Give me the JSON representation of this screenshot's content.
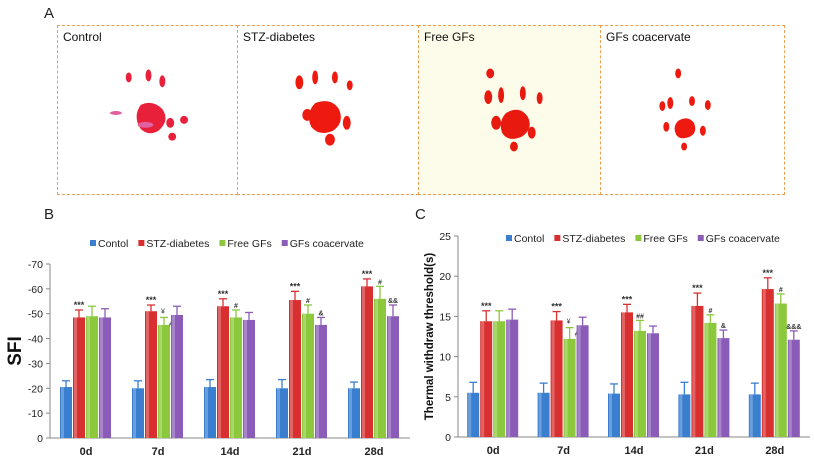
{
  "panel_labels": {
    "a": "A",
    "b": "B",
    "c": "C"
  },
  "paw_panels": [
    {
      "title": "Control",
      "background": "#ffffff"
    },
    {
      "title": "STZ-diabetes",
      "background": "#ffffff"
    },
    {
      "title": "Free GFs",
      "background": "#fdfbe9"
    },
    {
      "title": "GFs coacervate",
      "background": "#ffffff"
    }
  ],
  "chart_data": [
    {
      "type": "bar",
      "title": "",
      "panel": "B",
      "ylabel": "SFI",
      "xlabel": "",
      "ylim": [
        0,
        -70
      ],
      "yticks": [
        0,
        -10,
        -20,
        -30,
        -40,
        -50,
        -60,
        -70
      ],
      "inverted_axis": true,
      "categories": [
        "0d",
        "7d",
        "14d",
        "21d",
        "28d"
      ],
      "legend_position": "top",
      "series": [
        {
          "name": "Contol",
          "color": "#3a7ed0",
          "values": [
            -20.5,
            -20,
            -20.5,
            -20,
            -20
          ],
          "errors": [
            2.5,
            3,
            3,
            3.5,
            2.5
          ],
          "annotations": [
            "",
            "",
            "",
            "",
            ""
          ]
        },
        {
          "name": "STZ-diabetes",
          "color": "#d83030",
          "values": [
            -48.5,
            -51,
            -53,
            -55.5,
            -61
          ],
          "errors": [
            3,
            2.5,
            3,
            3.5,
            3
          ],
          "annotations": [
            "***",
            "***",
            "***",
            "***",
            "***"
          ]
        },
        {
          "name": "Free GFs",
          "color": "#8cc83c",
          "values": [
            -49,
            -45.5,
            -48.5,
            -50,
            -56
          ],
          "errors": [
            4,
            3,
            3,
            3.5,
            5
          ],
          "annotations": [
            "",
            "¥ ##",
            "#",
            "#",
            "#"
          ]
        },
        {
          "name": "GFs coacervate",
          "color": "#8a5cb8",
          "values": [
            -48.5,
            -49.5,
            -47.5,
            -45.5,
            -49
          ],
          "errors": [
            3.5,
            3.5,
            3,
            3,
            4.5
          ],
          "annotations": [
            "",
            "",
            "",
            "&",
            "&&"
          ]
        }
      ]
    },
    {
      "type": "bar",
      "title": "",
      "panel": "C",
      "ylabel": "Thermal withdraw threshold(s)",
      "xlabel": "",
      "ylim": [
        0,
        25
      ],
      "yticks": [
        0,
        5,
        10,
        15,
        20,
        25
      ],
      "inverted_axis": false,
      "categories": [
        "0d",
        "7d",
        "14d",
        "21d",
        "28d"
      ],
      "legend_position": "top",
      "series": [
        {
          "name": "Contol",
          "color": "#3a7ed0",
          "values": [
            5.5,
            5.5,
            5.4,
            5.3,
            5.3
          ],
          "errors": [
            1.3,
            1.2,
            1.2,
            1.5,
            1.4
          ],
          "annotations": [
            "",
            "",
            "",
            "",
            ""
          ]
        },
        {
          "name": "STZ-diabetes",
          "color": "#d83030",
          "values": [
            14.4,
            14.5,
            15.5,
            16.3,
            18.4
          ],
          "errors": [
            1.3,
            1.1,
            1.0,
            1.6,
            1.4
          ],
          "annotations": [
            "***",
            "***",
            "***",
            "***",
            "***"
          ]
        },
        {
          "name": "Free GFs",
          "color": "#8cc83c",
          "values": [
            14.4,
            12.2,
            13.2,
            14.2,
            16.6
          ],
          "errors": [
            1.3,
            1.4,
            1.3,
            1.0,
            1.2
          ],
          "annotations": [
            "",
            "¥ ##",
            "##",
            "#",
            "#"
          ]
        },
        {
          "name": "GFs coacervate",
          "color": "#8a5cb8",
          "values": [
            14.6,
            13.9,
            12.9,
            12.3,
            12.1
          ],
          "errors": [
            1.3,
            1.0,
            0.9,
            1.0,
            1.1
          ],
          "annotations": [
            "",
            "",
            "",
            "&",
            "&&&"
          ]
        }
      ]
    }
  ]
}
